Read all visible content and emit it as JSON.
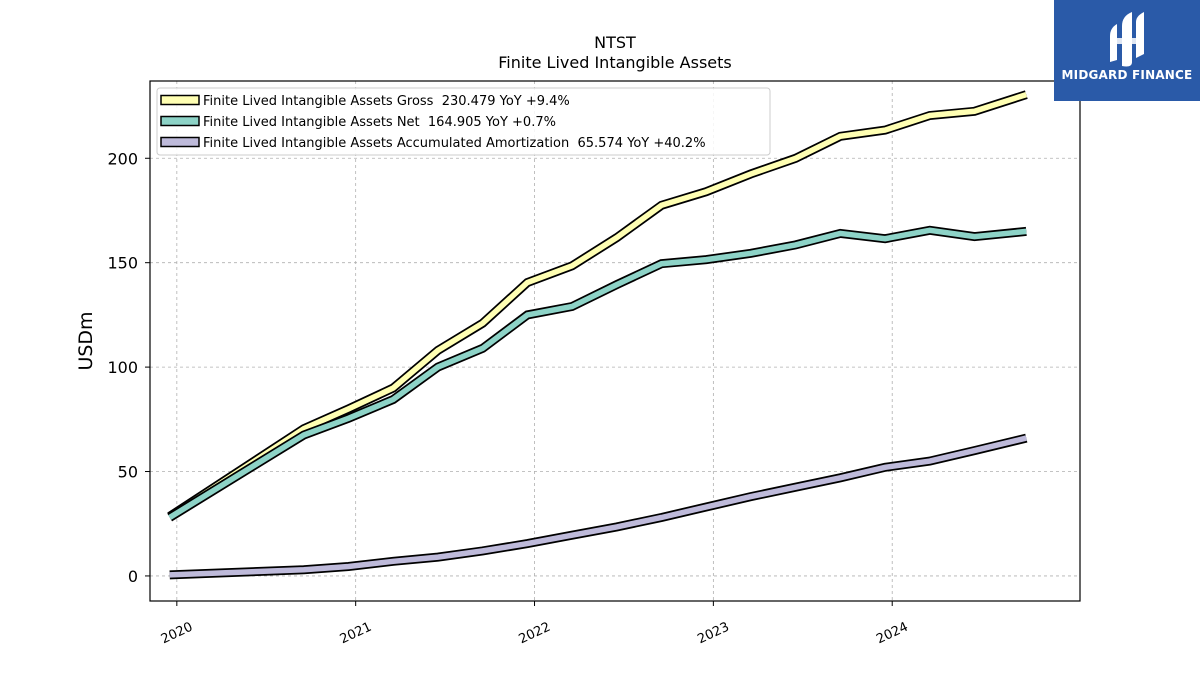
{
  "chart_data": {
    "type": "line",
    "title": "NTST",
    "subtitle": "Finite Lived Intangible Assets",
    "xlabel": "",
    "ylabel": "USDm",
    "xlim": [
      2019.85,
      2025.05
    ],
    "ylim": [
      -12,
      237
    ],
    "yticks": [
      0,
      50,
      100,
      150,
      200
    ],
    "xticks": [
      {
        "value": 2020,
        "label": "2020"
      },
      {
        "value": 2021,
        "label": "2021"
      },
      {
        "value": 2022,
        "label": "2022"
      },
      {
        "value": 2023,
        "label": "2023"
      },
      {
        "value": 2024,
        "label": "2024"
      }
    ],
    "grid": true,
    "legend_position": "top-left",
    "x": [
      2019.96,
      2020.71,
      2020.96,
      2021.21,
      2021.46,
      2021.71,
      2021.96,
      2022.21,
      2022.46,
      2022.71,
      2022.96,
      2023.21,
      2023.46,
      2023.71,
      2023.96,
      2024.21,
      2024.46,
      2024.75
    ],
    "series": [
      {
        "name": "Finite Lived Intangible Assets Gross",
        "legend_label": "Finite Lived Intangible Assets Gross  230.479 YoY +9.4%",
        "color": "#ffffb3",
        "values": [
          28.5,
          70.5,
          80.0,
          90.0,
          108.0,
          121.0,
          140.5,
          148.5,
          162.0,
          177.5,
          184.0,
          192.5,
          200.0,
          210.5,
          213.5,
          220.5,
          222.5,
          230.5
        ]
      },
      {
        "name": "Finite Lived Intangible Assets Net",
        "legend_label": "Finite Lived Intangible Assets Net  164.905 YoY +0.7%",
        "color": "#8dd3c7",
        "values": [
          28.0,
          67.5,
          75.5,
          84.5,
          100.0,
          109.0,
          125.0,
          129.0,
          139.5,
          149.5,
          151.5,
          154.5,
          158.5,
          164.0,
          161.5,
          165.5,
          162.5,
          165.0
        ]
      },
      {
        "name": "Finite Lived Intangible Assets Accumulated Amortization",
        "legend_label": "Finite Lived Intangible Assets Accumulated Amortization  65.574 YoY +40.2%",
        "color": "#bebada",
        "values": [
          0.5,
          3.0,
          4.5,
          7.0,
          9.0,
          12.0,
          15.5,
          19.5,
          23.5,
          28.0,
          33.0,
          38.0,
          42.5,
          47.0,
          52.0,
          55.0,
          60.0,
          66.0
        ]
      }
    ]
  },
  "logo": {
    "text": "MIDGARD FINANCE",
    "background": "#2a5aa8"
  }
}
